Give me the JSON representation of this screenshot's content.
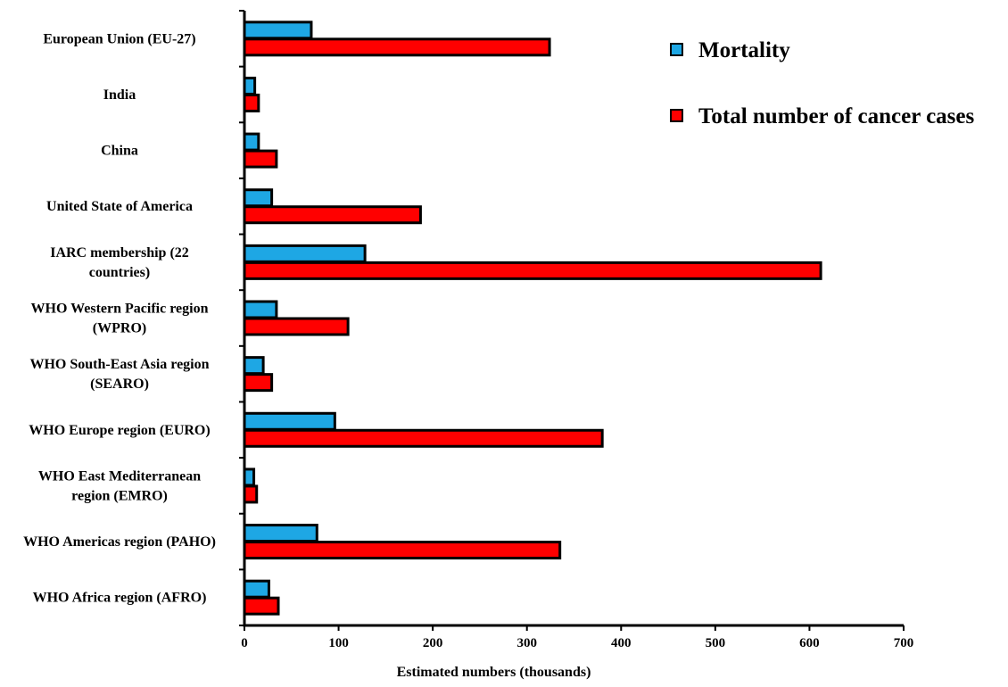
{
  "chart_data": {
    "type": "bar",
    "orientation": "horizontal",
    "title": "",
    "xlabel": "Estimated  numbers (thousands)",
    "ylabel": "",
    "xlim": [
      0,
      700
    ],
    "xticks": [
      0,
      100,
      200,
      300,
      400,
      500,
      600,
      700
    ],
    "grid": false,
    "legend_position": "top-right",
    "categories": [
      [
        "European Union (EU-27)"
      ],
      [
        "India"
      ],
      [
        "China"
      ],
      [
        "United State of America"
      ],
      [
        "IARC membership (22",
        "countries)"
      ],
      [
        "WHO Western Pacific region",
        "(WPRO)"
      ],
      [
        "WHO South-East Asia region",
        "(SEARO)"
      ],
      [
        "WHO Europe region (EURO)"
      ],
      [
        "WHO East Mediterranean",
        "region (EMRO)"
      ],
      [
        "WHO Americas region (PAHO)"
      ],
      [
        "WHO Africa region (AFRO)"
      ]
    ],
    "series": [
      {
        "name": "Mortality",
        "color": "#1EA7E4",
        "values": [
          71,
          11,
          15,
          29,
          128,
          34,
          20,
          96,
          10,
          77,
          26
        ]
      },
      {
        "name": "Total number of cancer cases",
        "color": "#FF0000",
        "values": [
          324,
          15,
          34,
          187,
          612,
          110,
          29,
          380,
          13,
          335,
          36
        ]
      }
    ]
  }
}
